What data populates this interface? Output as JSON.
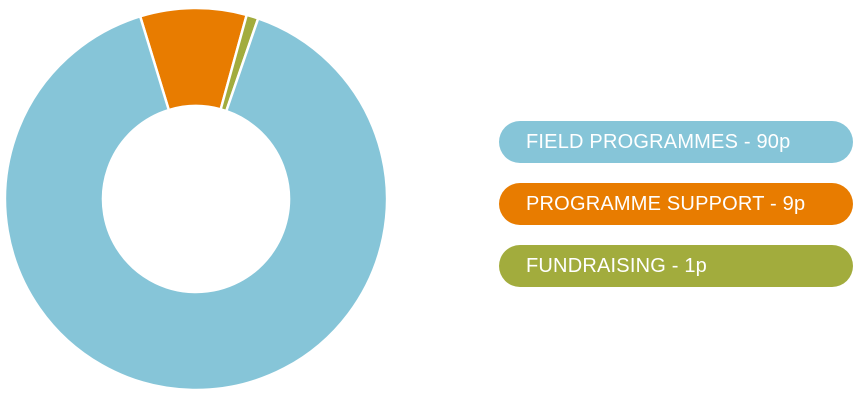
{
  "chart_data": {
    "type": "pie",
    "variant": "donut",
    "title": "",
    "unit": "p",
    "categories": [
      "Field Programmes",
      "Programme Support",
      "Fundraising"
    ],
    "values": [
      90,
      9,
      1
    ],
    "colors": [
      "#86C5D8",
      "#E87C00",
      "#A2AC3D"
    ],
    "legend_position": "right"
  },
  "legend": {
    "items": [
      {
        "label": "FIELD PROGRAMMES - 90p",
        "color": "#86C5D8"
      },
      {
        "label": "PROGRAMME SUPPORT - 9p",
        "color": "#E87C00"
      },
      {
        "label": "FUNDRAISING - 1p",
        "color": "#A2AC3D"
      }
    ]
  }
}
